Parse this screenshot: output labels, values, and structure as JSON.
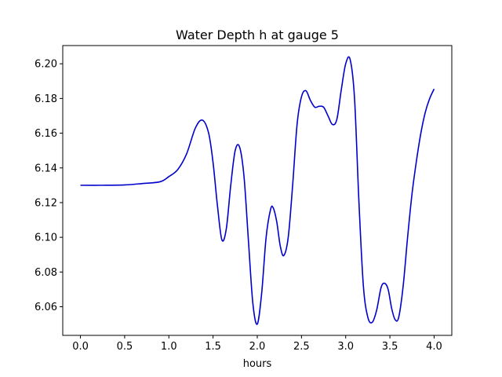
{
  "chart_data": {
    "type": "line",
    "title": "Water Depth h at gauge 5",
    "xlabel": "hours",
    "ylabel": "",
    "xlim": [
      -0.2,
      4.2
    ],
    "ylim": [
      6.0435,
      6.2105
    ],
    "xticks": [
      0.0,
      0.5,
      1.0,
      1.5,
      2.0,
      2.5,
      3.0,
      3.5,
      4.0
    ],
    "xtick_labels": [
      "0.0",
      "0.5",
      "1.0",
      "1.5",
      "2.0",
      "2.5",
      "3.0",
      "3.5",
      "4.0"
    ],
    "yticks": [
      6.06,
      6.08,
      6.1,
      6.12,
      6.14,
      6.16,
      6.18,
      6.2
    ],
    "ytick_labels": [
      "6.06",
      "6.08",
      "6.10",
      "6.12",
      "6.14",
      "6.16",
      "6.18",
      "6.20"
    ],
    "grid": false,
    "series": [
      {
        "color": "#0000cc",
        "x": [
          0.0,
          0.25,
          0.5,
          0.7,
          0.9,
          1.0,
          1.1,
          1.2,
          1.3,
          1.38,
          1.45,
          1.5,
          1.55,
          1.6,
          1.65,
          1.7,
          1.75,
          1.8,
          1.85,
          1.9,
          1.95,
          2.0,
          2.05,
          2.1,
          2.15,
          2.18,
          2.22,
          2.26,
          2.3,
          2.35,
          2.4,
          2.45,
          2.5,
          2.55,
          2.6,
          2.65,
          2.7,
          2.75,
          2.8,
          2.85,
          2.9,
          2.95,
          3.0,
          3.05,
          3.1,
          3.15,
          3.2,
          3.25,
          3.3,
          3.35,
          3.4,
          3.44,
          3.48,
          3.52,
          3.56,
          3.6,
          3.65,
          3.7,
          3.75,
          3.8,
          3.85,
          3.9,
          3.95,
          4.0
        ],
        "y": [
          6.13,
          6.13,
          6.1302,
          6.131,
          6.132,
          6.135,
          6.139,
          6.148,
          6.163,
          6.1675,
          6.16,
          6.143,
          6.118,
          6.0985,
          6.105,
          6.13,
          6.15,
          6.152,
          6.135,
          6.098,
          6.062,
          6.05,
          6.068,
          6.1,
          6.116,
          6.117,
          6.109,
          6.095,
          6.0895,
          6.1,
          6.13,
          6.165,
          6.181,
          6.1845,
          6.179,
          6.175,
          6.1755,
          6.175,
          6.17,
          6.165,
          6.168,
          6.185,
          6.2,
          6.2025,
          6.18,
          6.12,
          6.072,
          6.054,
          6.051,
          6.058,
          6.071,
          6.0735,
          6.07,
          6.059,
          6.0525,
          6.054,
          6.072,
          6.1,
          6.125,
          6.144,
          6.16,
          6.172,
          6.18,
          6.1855
        ]
      }
    ]
  }
}
